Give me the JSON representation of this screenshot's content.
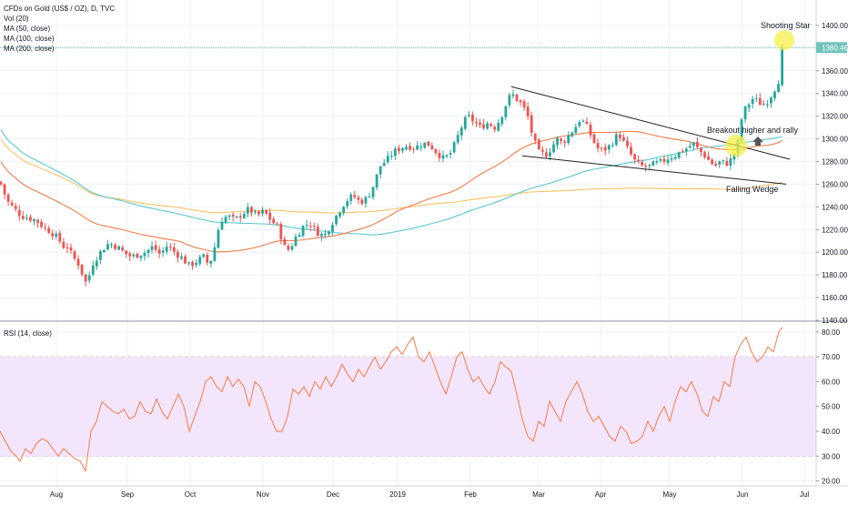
{
  "header": {
    "title": "CFDs on Gold (US$ / OZ), D, TVC",
    "indicators": [
      "Vol (20)",
      "MA (50, close)",
      "MA (100, close)",
      "MA (200, close)"
    ]
  },
  "rsi_panel": {
    "title": "RSI (14, close)"
  },
  "colors": {
    "bull": "#26a69a",
    "bear": "#ef5350",
    "ma50": "#f57c48",
    "ma100": "#5bc8cf",
    "ma200": "#f9c363",
    "rsi": "#f57c48",
    "rsi_band": "#f3e5fb",
    "price_line": "#6fc3bd",
    "annotation": "#f7ef4a"
  },
  "annotations": {
    "shooting_star": "Shooting Star",
    "breakout": "Breakout higher and rally",
    "falling_wedge": "Falling Wedge"
  },
  "chart_data": [
    {
      "type": "candlestick",
      "x_axis": {
        "labels": [
          "Aug",
          "Sep",
          "Oct",
          "Nov",
          "Dec",
          "2019",
          "Feb",
          "Mar",
          "Apr",
          "May",
          "Jun",
          "Jul"
        ]
      },
      "y_axis": {
        "ticks": [
          "1400.00",
          "1380.00",
          "1360.00",
          "1340.00",
          "1320.00",
          "1300.00",
          "1280.00",
          "1260.00",
          "1240.00",
          "1220.00",
          "1200.00",
          "1180.00",
          "1160.00",
          "1140.00"
        ],
        "ylim": [
          1140,
          1420
        ]
      },
      "last_price": 1380.46,
      "last_price_label": "1380.46",
      "close_path": [
        [
          0,
          1262
        ],
        [
          8,
          1245
        ],
        [
          16,
          1238
        ],
        [
          24,
          1232
        ],
        [
          32,
          1230
        ],
        [
          40,
          1228
        ],
        [
          48,
          1222
        ],
        [
          56,
          1218
        ],
        [
          64,
          1212
        ],
        [
          70,
          1205
        ],
        [
          74,
          1205
        ],
        [
          80,
          1196
        ],
        [
          86,
          1190
        ],
        [
          92,
          1178
        ],
        [
          96,
          1170
        ],
        [
          100,
          1188
        ],
        [
          106,
          1195
        ],
        [
          112,
          1202
        ],
        [
          120,
          1208
        ],
        [
          128,
          1205
        ],
        [
          136,
          1200
        ],
        [
          144,
          1196
        ],
        [
          152,
          1198
        ],
        [
          160,
          1200
        ],
        [
          168,
          1205
        ],
        [
          176,
          1198
        ],
        [
          184,
          1206
        ],
        [
          192,
          1200
        ],
        [
          200,
          1195
        ],
        [
          208,
          1188
        ],
        [
          216,
          1192
        ],
        [
          224,
          1196
        ],
        [
          230,
          1188
        ],
        [
          236,
          1205
        ],
        [
          242,
          1228
        ],
        [
          250,
          1232
        ],
        [
          258,
          1228
        ],
        [
          266,
          1234
        ],
        [
          274,
          1238
        ],
        [
          282,
          1232
        ],
        [
          290,
          1236
        ],
        [
          298,
          1228
        ],
        [
          306,
          1222
        ],
        [
          312,
          1205
        ],
        [
          318,
          1202
        ],
        [
          324,
          1212
        ],
        [
          332,
          1222
        ],
        [
          340,
          1226
        ],
        [
          348,
          1218
        ],
        [
          356,
          1214
        ],
        [
          362,
          1222
        ],
        [
          368,
          1230
        ],
        [
          374,
          1238
        ],
        [
          380,
          1245
        ],
        [
          388,
          1250
        ],
        [
          396,
          1244
        ],
        [
          404,
          1248
        ],
        [
          410,
          1258
        ],
        [
          418,
          1276
        ],
        [
          426,
          1282
        ],
        [
          432,
          1288
        ],
        [
          440,
          1292
        ],
        [
          448,
          1294
        ],
        [
          456,
          1292
        ],
        [
          464,
          1296
        ],
        [
          472,
          1295
        ],
        [
          480,
          1288
        ],
        [
          488,
          1282
        ],
        [
          496,
          1288
        ],
        [
          502,
          1300
        ],
        [
          508,
          1312
        ],
        [
          514,
          1320
        ],
        [
          520,
          1316
        ],
        [
          528,
          1310
        ],
        [
          536,
          1314
        ],
        [
          544,
          1310
        ],
        [
          550,
          1318
        ],
        [
          556,
          1330
        ],
        [
          562,
          1340
        ],
        [
          568,
          1335
        ],
        [
          574,
          1330
        ],
        [
          580,
          1320
        ],
        [
          586,
          1300
        ],
        [
          592,
          1288
        ],
        [
          600,
          1286
        ],
        [
          606,
          1292
        ],
        [
          612,
          1300
        ],
        [
          618,
          1296
        ],
        [
          624,
          1302
        ],
        [
          632,
          1310
        ],
        [
          638,
          1318
        ],
        [
          644,
          1312
        ],
        [
          650,
          1302
        ],
        [
          656,
          1292
        ],
        [
          662,
          1290
        ],
        [
          668,
          1292
        ],
        [
          674,
          1298
        ],
        [
          680,
          1305
        ],
        [
          686,
          1296
        ],
        [
          692,
          1288
        ],
        [
          698,
          1280
        ],
        [
          704,
          1276
        ],
        [
          712,
          1275
        ],
        [
          720,
          1278
        ],
        [
          728,
          1280
        ],
        [
          736,
          1284
        ],
        [
          744,
          1286
        ],
        [
          750,
          1290
        ],
        [
          756,
          1292
        ],
        [
          762,
          1296
        ],
        [
          768,
          1290
        ],
        [
          774,
          1286
        ],
        [
          780,
          1280
        ],
        [
          786,
          1276
        ],
        [
          792,
          1280
        ],
        [
          798,
          1278
        ],
        [
          804,
          1282
        ],
        [
          810,
          1292
        ],
        [
          816,
          1322
        ],
        [
          822,
          1330
        ],
        [
          828,
          1336
        ],
        [
          834,
          1332
        ],
        [
          840,
          1330
        ],
        [
          846,
          1336
        ],
        [
          852,
          1345
        ],
        [
          856,
          1352
        ],
        [
          860,
          1380
        ]
      ]
    },
    {
      "type": "line",
      "series": [
        {
          "name": "RSI (14, close)",
          "x": [
            0,
            6,
            12,
            18,
            22,
            28,
            34,
            40,
            46,
            52,
            58,
            64,
            70,
            76,
            82,
            88,
            94,
            100,
            106,
            112,
            118,
            124,
            130,
            136,
            142,
            148,
            154,
            160,
            166,
            172,
            178,
            184,
            190,
            196,
            202,
            208,
            214,
            220,
            226,
            232,
            238,
            244,
            250,
            256,
            262,
            268,
            274,
            280,
            286,
            292,
            298,
            304,
            310,
            316,
            322,
            328,
            334,
            340,
            346,
            352,
            358,
            364,
            370,
            376,
            382,
            388,
            394,
            400,
            406,
            412,
            418,
            424,
            430,
            436,
            442,
            448,
            454,
            460,
            466,
            472,
            478,
            484,
            490,
            496,
            502,
            508,
            514,
            520,
            526,
            532,
            538,
            544,
            550,
            556,
            562,
            568,
            574,
            580,
            586,
            592,
            598,
            604,
            610,
            616,
            622,
            628,
            634,
            640,
            646,
            652,
            658,
            664,
            670,
            676,
            682,
            688,
            694,
            700,
            706,
            712,
            718,
            724,
            730,
            736,
            742,
            748,
            754,
            760,
            766,
            772,
            778,
            784,
            790,
            796,
            802,
            808,
            814,
            820,
            826,
            832,
            838,
            844,
            850,
            856,
            860
          ],
          "values": [
            40,
            36,
            32,
            30,
            28,
            33,
            31,
            35,
            37,
            36,
            33,
            30,
            33,
            31,
            29,
            28,
            24,
            40,
            44,
            52,
            50,
            48,
            47,
            49,
            45,
            46,
            52,
            48,
            47,
            53,
            48,
            45,
            50,
            55,
            50,
            40,
            46,
            52,
            60,
            62,
            58,
            56,
            62,
            58,
            61,
            58,
            50,
            60,
            58,
            52,
            45,
            40,
            40,
            46,
            57,
            55,
            58,
            54,
            60,
            57,
            62,
            58,
            62,
            67,
            63,
            60,
            65,
            62,
            66,
            70,
            65,
            68,
            72,
            74,
            71,
            75,
            78,
            70,
            68,
            72,
            66,
            60,
            55,
            62,
            70,
            72,
            65,
            60,
            62,
            58,
            55,
            60,
            68,
            66,
            64,
            55,
            45,
            38,
            36,
            44,
            42,
            52,
            48,
            44,
            52,
            56,
            60,
            55,
            48,
            44,
            46,
            42,
            38,
            36,
            42,
            40,
            35,
            36,
            38,
            44,
            40,
            46,
            50,
            44,
            52,
            58,
            56,
            60,
            55,
            48,
            46,
            54,
            52,
            60,
            58,
            70,
            75,
            78,
            72,
            68,
            70,
            74,
            72,
            80,
            82
          ]
        }
      ],
      "x_axis": {
        "labels": [
          "Aug",
          "Sep",
          "Oct",
          "Nov",
          "Dec",
          "2019",
          "Feb",
          "Mar",
          "Apr",
          "May",
          "Jun",
          "Jul"
        ]
      },
      "y_axis": {
        "ticks": [
          "80.00",
          "70.00",
          "60.00",
          "50.00",
          "40.00",
          "30.00",
          "20.00"
        ],
        "ylim": [
          18,
          84
        ]
      },
      "band": [
        30,
        70
      ]
    }
  ]
}
